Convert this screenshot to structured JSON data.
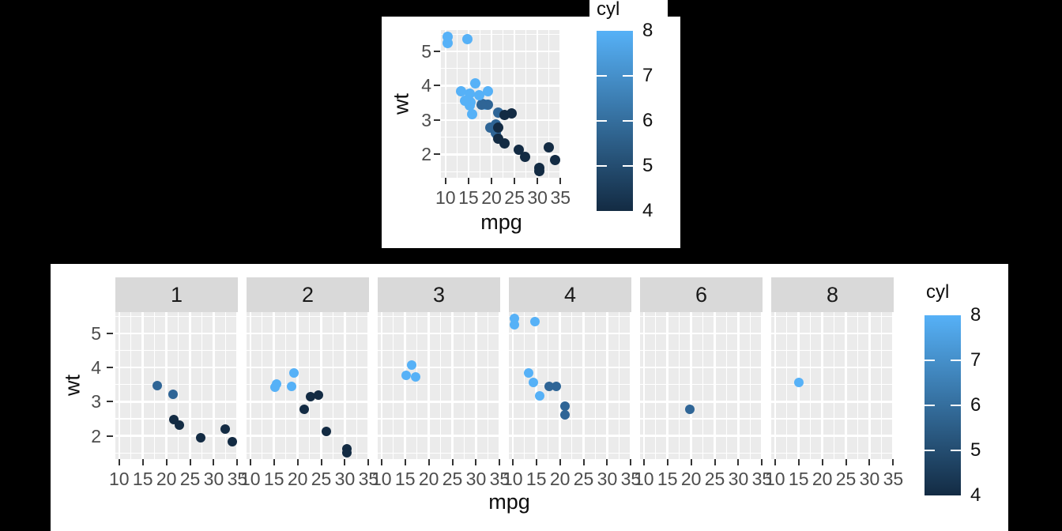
{
  "colors": {
    "page_background": "#000000",
    "plot_background": "#FFFFFF",
    "panel_background": "#EBEBEB",
    "strip_background": "#D9D9D9",
    "grid_line": "#FFFFFF",
    "tick_text": "#4D4D4D",
    "tick_mark": "#333333",
    "gradient_high": "#56B1F7",
    "gradient_low": "#132B43",
    "cyl_colors": {
      "4": "#132B43",
      "6": "#2F6596",
      "8": "#56B1F7"
    }
  },
  "chart_data": [
    {
      "id": "top",
      "type": "scatter",
      "title": "",
      "xlabel": "mpg",
      "ylabel": "wt",
      "xlim": [
        9.0,
        35.3
      ],
      "ylim": [
        1.32,
        5.62
      ],
      "x_ticks": [
        10,
        15,
        20,
        25,
        30,
        35
      ],
      "y_ticks": [
        5,
        4,
        3,
        2
      ],
      "x_minor": [
        12.5,
        17.5,
        22.5,
        27.5,
        32.5
      ],
      "y_minor": [
        1.5,
        2.5,
        3.5,
        4.5,
        5.5
      ],
      "grid": "on",
      "legend": {
        "title": "cyl",
        "position": "right",
        "labels": [
          8,
          7,
          6,
          5,
          4
        ],
        "min": 4,
        "max": 8,
        "tick_values": [
          5,
          6,
          7
        ]
      },
      "point_columns": [
        "mpg",
        "wt",
        "cyl",
        "carb"
      ],
      "points": [
        [
          21.0,
          2.62,
          6,
          4
        ],
        [
          21.0,
          2.875,
          6,
          4
        ],
        [
          22.8,
          2.32,
          4,
          1
        ],
        [
          21.4,
          3.215,
          6,
          1
        ],
        [
          18.7,
          3.44,
          8,
          2
        ],
        [
          18.1,
          3.46,
          6,
          1
        ],
        [
          14.3,
          3.57,
          8,
          4
        ],
        [
          24.4,
          3.19,
          4,
          2
        ],
        [
          22.8,
          3.15,
          4,
          2
        ],
        [
          19.2,
          3.44,
          6,
          4
        ],
        [
          17.8,
          3.44,
          6,
          4
        ],
        [
          16.4,
          4.07,
          8,
          3
        ],
        [
          17.3,
          3.73,
          8,
          3
        ],
        [
          15.2,
          3.78,
          8,
          3
        ],
        [
          10.4,
          5.25,
          8,
          4
        ],
        [
          10.4,
          5.424,
          8,
          4
        ],
        [
          14.7,
          5.345,
          8,
          4
        ],
        [
          32.4,
          2.2,
          4,
          1
        ],
        [
          30.4,
          1.615,
          4,
          2
        ],
        [
          33.9,
          1.835,
          4,
          1
        ],
        [
          21.5,
          2.465,
          4,
          1
        ],
        [
          15.5,
          3.52,
          8,
          2
        ],
        [
          15.2,
          3.435,
          8,
          2
        ],
        [
          13.3,
          3.84,
          8,
          4
        ],
        [
          19.2,
          3.845,
          8,
          2
        ],
        [
          27.3,
          1.935,
          4,
          1
        ],
        [
          26.0,
          2.14,
          4,
          2
        ],
        [
          30.4,
          1.513,
          4,
          2
        ],
        [
          15.8,
          3.17,
          8,
          4
        ],
        [
          19.7,
          2.77,
          6,
          6
        ],
        [
          15.0,
          3.57,
          8,
          8
        ],
        [
          21.4,
          2.78,
          4,
          2
        ]
      ]
    },
    {
      "id": "bottom",
      "type": "scatter",
      "title": "",
      "xlabel": "mpg",
      "ylabel": "wt",
      "facet_variable": "carb",
      "facets": [
        "1",
        "2",
        "3",
        "4",
        "6",
        "8"
      ],
      "xlim": [
        9.2,
        35.1
      ],
      "ylim": [
        1.32,
        5.62
      ],
      "x_ticks": [
        10,
        15,
        20,
        25,
        30,
        35
      ],
      "y_ticks": [
        5,
        4,
        3,
        2
      ],
      "x_minor": [
        12.5,
        17.5,
        22.5,
        27.5,
        32.5
      ],
      "y_minor": [
        1.5,
        2.5,
        3.5,
        4.5,
        5.5
      ],
      "grid": "on",
      "legend": {
        "title": "cyl",
        "position": "right",
        "labels": [
          8,
          7,
          6,
          5,
          4
        ],
        "min": 4,
        "max": 8,
        "tick_values": [
          5,
          6,
          7
        ]
      },
      "point_columns": [
        "mpg",
        "wt",
        "cyl",
        "carb"
      ],
      "points": [
        [
          21.0,
          2.62,
          6,
          4
        ],
        [
          21.0,
          2.875,
          6,
          4
        ],
        [
          22.8,
          2.32,
          4,
          1
        ],
        [
          21.4,
          3.215,
          6,
          1
        ],
        [
          18.7,
          3.44,
          8,
          2
        ],
        [
          18.1,
          3.46,
          6,
          1
        ],
        [
          14.3,
          3.57,
          8,
          4
        ],
        [
          24.4,
          3.19,
          4,
          2
        ],
        [
          22.8,
          3.15,
          4,
          2
        ],
        [
          19.2,
          3.44,
          6,
          4
        ],
        [
          17.8,
          3.44,
          6,
          4
        ],
        [
          16.4,
          4.07,
          8,
          3
        ],
        [
          17.3,
          3.73,
          8,
          3
        ],
        [
          15.2,
          3.78,
          8,
          3
        ],
        [
          10.4,
          5.25,
          8,
          4
        ],
        [
          10.4,
          5.424,
          8,
          4
        ],
        [
          14.7,
          5.345,
          8,
          4
        ],
        [
          32.4,
          2.2,
          4,
          1
        ],
        [
          30.4,
          1.615,
          4,
          2
        ],
        [
          33.9,
          1.835,
          4,
          1
        ],
        [
          21.5,
          2.465,
          4,
          1
        ],
        [
          15.5,
          3.52,
          8,
          2
        ],
        [
          15.2,
          3.435,
          8,
          2
        ],
        [
          13.3,
          3.84,
          8,
          4
        ],
        [
          19.2,
          3.845,
          8,
          2
        ],
        [
          27.3,
          1.935,
          4,
          1
        ],
        [
          26.0,
          2.14,
          4,
          2
        ],
        [
          30.4,
          1.513,
          4,
          2
        ],
        [
          15.8,
          3.17,
          8,
          4
        ],
        [
          19.7,
          2.77,
          6,
          6
        ],
        [
          15.0,
          3.57,
          8,
          8
        ],
        [
          21.4,
          2.78,
          4,
          2
        ]
      ]
    }
  ]
}
